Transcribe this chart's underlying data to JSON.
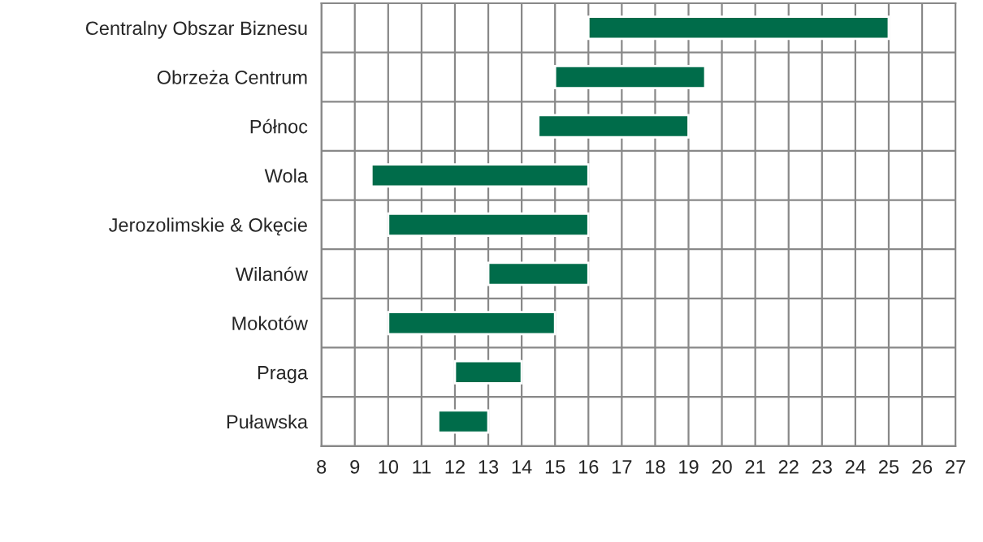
{
  "chart_data": {
    "type": "bar",
    "orientation": "horizontal",
    "categories": [
      "Centralny Obszar Biznesu",
      "Obrzeża Centrum",
      "Północ",
      "Wola",
      "Jerozolimskie & Okęcie",
      "Wilanów",
      "Mokotów",
      "Praga",
      "Puławska"
    ],
    "base": [
      16,
      15,
      14.5,
      9.5,
      10,
      13,
      10,
      12,
      11.5
    ],
    "values": [
      9,
      4.5,
      4.5,
      6.5,
      6,
      3,
      5,
      2,
      1.5
    ],
    "color": "#006c4a",
    "xlim": [
      8,
      27
    ],
    "xticks": [
      8,
      9,
      10,
      11,
      12,
      13,
      14,
      15,
      16,
      17,
      18,
      19,
      20,
      21,
      22,
      23,
      24,
      25,
      26,
      27
    ],
    "grid": true
  }
}
